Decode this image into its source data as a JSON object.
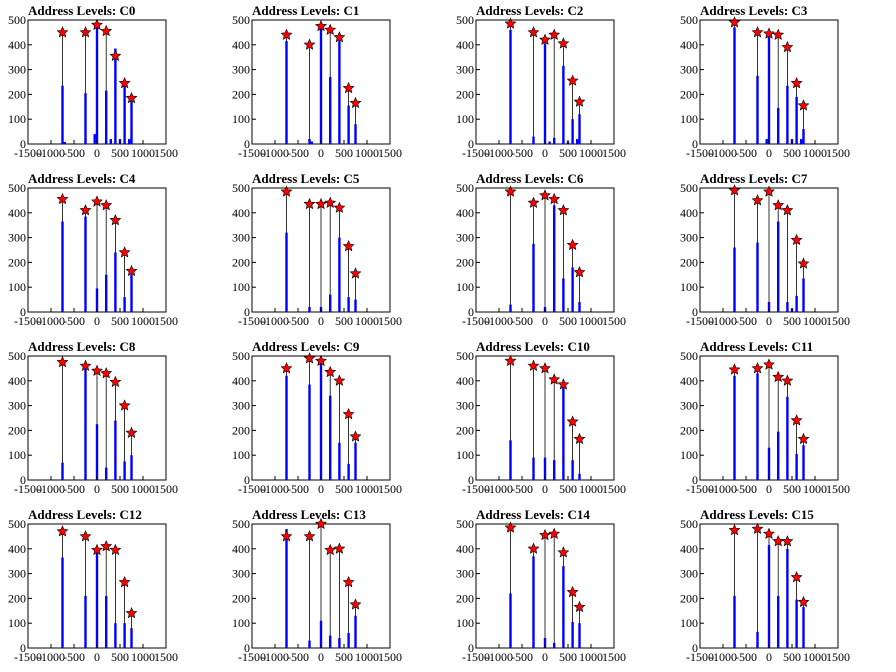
{
  "chart_data": [
    {
      "type": "bar",
      "title": "Address Levels: C0",
      "xlim": [
        -1500,
        1500
      ],
      "ylim": [
        0,
        500
      ],
      "xticks": [
        -1500,
        -1000,
        -500,
        0,
        500,
        1000,
        1500
      ],
      "yticks": [
        0,
        100,
        200,
        300,
        400,
        500
      ],
      "bars": [
        [
          -750,
          235
        ],
        [
          -700,
          8
        ],
        [
          -250,
          205
        ],
        [
          -50,
          40
        ],
        [
          0,
          485
        ],
        [
          200,
          215
        ],
        [
          300,
          20
        ],
        [
          400,
          385
        ],
        [
          500,
          20
        ],
        [
          600,
          245
        ],
        [
          700,
          20
        ],
        [
          750,
          180
        ]
      ],
      "peaks": [
        [
          -750,
          450
        ],
        [
          -250,
          450
        ],
        [
          0,
          480
        ],
        [
          200,
          455
        ],
        [
          400,
          355
        ],
        [
          600,
          245
        ],
        [
          750,
          185
        ]
      ]
    },
    {
      "type": "bar",
      "title": "Address Levels: C1",
      "xlim": [
        -1500,
        1500
      ],
      "ylim": [
        0,
        500
      ],
      "xticks": [
        -1500,
        -1000,
        -500,
        0,
        500,
        1000,
        1500
      ],
      "yticks": [
        0,
        100,
        200,
        300,
        400,
        500
      ],
      "bars": [
        [
          -750,
          415
        ],
        [
          -250,
          20
        ],
        [
          -200,
          10
        ],
        [
          0,
          465
        ],
        [
          200,
          270
        ],
        [
          400,
          415
        ],
        [
          600,
          155
        ],
        [
          750,
          80
        ]
      ],
      "peaks": [
        [
          -750,
          440
        ],
        [
          -250,
          400
        ],
        [
          0,
          475
        ],
        [
          200,
          460
        ],
        [
          400,
          430
        ],
        [
          600,
          225
        ],
        [
          750,
          165
        ]
      ]
    },
    {
      "type": "bar",
      "title": "Address Levels: C2",
      "xlim": [
        -1500,
        1500
      ],
      "ylim": [
        0,
        500
      ],
      "xticks": [
        -1500,
        -1000,
        -500,
        0,
        500,
        1000,
        1500
      ],
      "yticks": [
        0,
        100,
        200,
        300,
        400,
        500
      ],
      "bars": [
        [
          -750,
          460
        ],
        [
          -250,
          30
        ],
        [
          0,
          405
        ],
        [
          100,
          10
        ],
        [
          200,
          25
        ],
        [
          400,
          315
        ],
        [
          500,
          10
        ],
        [
          600,
          100
        ],
        [
          700,
          20
        ],
        [
          750,
          120
        ]
      ],
      "peaks": [
        [
          -750,
          485
        ],
        [
          -250,
          450
        ],
        [
          0,
          420
        ],
        [
          200,
          440
        ],
        [
          400,
          405
        ],
        [
          600,
          255
        ],
        [
          750,
          170
        ]
      ]
    },
    {
      "type": "bar",
      "title": "Address Levels: C3",
      "xlim": [
        -1500,
        1500
      ],
      "ylim": [
        0,
        500
      ],
      "xticks": [
        -1500,
        -1000,
        -500,
        0,
        500,
        1000,
        1500
      ],
      "yticks": [
        0,
        100,
        200,
        300,
        400,
        500
      ],
      "bars": [
        [
          -750,
          470
        ],
        [
          -250,
          275
        ],
        [
          -50,
          20
        ],
        [
          0,
          440
        ],
        [
          200,
          145
        ],
        [
          400,
          235
        ],
        [
          500,
          20
        ],
        [
          600,
          190
        ],
        [
          700,
          20
        ],
        [
          750,
          60
        ]
      ],
      "peaks": [
        [
          -750,
          490
        ],
        [
          -250,
          450
        ],
        [
          0,
          445
        ],
        [
          200,
          440
        ],
        [
          400,
          390
        ],
        [
          600,
          245
        ],
        [
          750,
          155
        ]
      ]
    },
    {
      "type": "bar",
      "title": "Address Levels: C4",
      "xlim": [
        -1500,
        1500
      ],
      "ylim": [
        0,
        500
      ],
      "xticks": [
        -1500,
        -1000,
        -500,
        0,
        500,
        1000,
        1500
      ],
      "yticks": [
        0,
        100,
        200,
        300,
        400,
        500
      ],
      "bars": [
        [
          -750,
          365
        ],
        [
          -250,
          385
        ],
        [
          0,
          95
        ],
        [
          200,
          150
        ],
        [
          400,
          240
        ],
        [
          600,
          60
        ],
        [
          750,
          150
        ]
      ],
      "peaks": [
        [
          -750,
          455
        ],
        [
          -250,
          410
        ],
        [
          0,
          445
        ],
        [
          200,
          430
        ],
        [
          400,
          370
        ],
        [
          600,
          240
        ],
        [
          750,
          165
        ]
      ]
    },
    {
      "type": "bar",
      "title": "Address Levels: C5",
      "xlim": [
        -1500,
        1500
      ],
      "ylim": [
        0,
        500
      ],
      "xticks": [
        -1500,
        -1000,
        -500,
        0,
        500,
        1000,
        1500
      ],
      "yticks": [
        0,
        100,
        200,
        300,
        400,
        500
      ],
      "bars": [
        [
          -750,
          320
        ],
        [
          -250,
          20
        ],
        [
          0,
          20
        ],
        [
          200,
          70
        ],
        [
          400,
          300
        ],
        [
          600,
          60
        ],
        [
          750,
          50
        ]
      ],
      "peaks": [
        [
          -750,
          485
        ],
        [
          -250,
          435
        ],
        [
          0,
          435
        ],
        [
          200,
          440
        ],
        [
          400,
          420
        ],
        [
          600,
          265
        ],
        [
          750,
          155
        ]
      ]
    },
    {
      "type": "bar",
      "title": "Address Levels: C6",
      "xlim": [
        -1500,
        1500
      ],
      "ylim": [
        0,
        500
      ],
      "xticks": [
        -1500,
        -1000,
        -500,
        0,
        500,
        1000,
        1500
      ],
      "yticks": [
        0,
        100,
        200,
        300,
        400,
        500
      ],
      "bars": [
        [
          -750,
          30
        ],
        [
          -250,
          275
        ],
        [
          0,
          20
        ],
        [
          200,
          430
        ],
        [
          400,
          135
        ],
        [
          600,
          180
        ],
        [
          750,
          40
        ]
      ],
      "peaks": [
        [
          -750,
          485
        ],
        [
          -250,
          440
        ],
        [
          0,
          470
        ],
        [
          200,
          455
        ],
        [
          400,
          410
        ],
        [
          600,
          270
        ],
        [
          750,
          160
        ]
      ]
    },
    {
      "type": "bar",
      "title": "Address Levels: C7",
      "xlim": [
        -1500,
        1500
      ],
      "ylim": [
        0,
        500
      ],
      "xticks": [
        -1500,
        -1000,
        -500,
        0,
        500,
        1000,
        1500
      ],
      "yticks": [
        0,
        100,
        200,
        300,
        400,
        500
      ],
      "bars": [
        [
          -750,
          260
        ],
        [
          -250,
          280
        ],
        [
          0,
          40
        ],
        [
          200,
          365
        ],
        [
          400,
          40
        ],
        [
          500,
          15
        ],
        [
          600,
          65
        ],
        [
          750,
          135
        ]
      ],
      "peaks": [
        [
          -750,
          490
        ],
        [
          -250,
          450
        ],
        [
          0,
          485
        ],
        [
          200,
          430
        ],
        [
          400,
          410
        ],
        [
          600,
          290
        ],
        [
          750,
          195
        ]
      ]
    },
    {
      "type": "bar",
      "title": "Address Levels: C8",
      "xlim": [
        -1500,
        1500
      ],
      "ylim": [
        0,
        500
      ],
      "xticks": [
        -1500,
        -1000,
        -500,
        0,
        500,
        1000,
        1500
      ],
      "yticks": [
        0,
        100,
        200,
        300,
        400,
        500
      ],
      "bars": [
        [
          -750,
          70
        ],
        [
          -250,
          455
        ],
        [
          0,
          225
        ],
        [
          200,
          50
        ],
        [
          400,
          240
        ],
        [
          600,
          75
        ],
        [
          750,
          100
        ]
      ],
      "peaks": [
        [
          -750,
          475
        ],
        [
          -250,
          460
        ],
        [
          0,
          440
        ],
        [
          200,
          430
        ],
        [
          400,
          395
        ],
        [
          600,
          300
        ],
        [
          750,
          190
        ]
      ]
    },
    {
      "type": "bar",
      "title": "Address Levels: C9",
      "xlim": [
        -1500,
        1500
      ],
      "ylim": [
        0,
        500
      ],
      "xticks": [
        -1500,
        -1000,
        -500,
        0,
        500,
        1000,
        1500
      ],
      "yticks": [
        0,
        100,
        200,
        300,
        400,
        500
      ],
      "bars": [
        [
          -750,
          420
        ],
        [
          -250,
          385
        ],
        [
          0,
          485
        ],
        [
          200,
          340
        ],
        [
          400,
          150
        ],
        [
          600,
          65
        ],
        [
          750,
          150
        ]
      ],
      "peaks": [
        [
          -750,
          450
        ],
        [
          -250,
          490
        ],
        [
          0,
          480
        ],
        [
          200,
          435
        ],
        [
          400,
          400
        ],
        [
          600,
          265
        ],
        [
          750,
          175
        ]
      ]
    },
    {
      "type": "bar",
      "title": "Address Levels: C10",
      "xlim": [
        -1500,
        1500
      ],
      "ylim": [
        0,
        500
      ],
      "xticks": [
        -1500,
        -1000,
        -500,
        0,
        500,
        1000,
        1500
      ],
      "yticks": [
        0,
        100,
        200,
        300,
        400,
        500
      ],
      "bars": [
        [
          -750,
          160
        ],
        [
          -250,
          90
        ],
        [
          0,
          90
        ],
        [
          200,
          80
        ],
        [
          400,
          385
        ],
        [
          600,
          80
        ],
        [
          750,
          25
        ]
      ],
      "peaks": [
        [
          -750,
          480
        ],
        [
          -250,
          460
        ],
        [
          0,
          450
        ],
        [
          200,
          405
        ],
        [
          400,
          385
        ],
        [
          600,
          235
        ],
        [
          750,
          165
        ]
      ]
    },
    {
      "type": "bar",
      "title": "Address Levels: C11",
      "xlim": [
        -1500,
        1500
      ],
      "ylim": [
        0,
        500
      ],
      "xticks": [
        -1500,
        -1000,
        -500,
        0,
        500,
        1000,
        1500
      ],
      "yticks": [
        0,
        100,
        200,
        300,
        400,
        500
      ],
      "bars": [
        [
          -750,
          420
        ],
        [
          -250,
          430
        ],
        [
          0,
          130
        ],
        [
          200,
          195
        ],
        [
          400,
          335
        ],
        [
          600,
          105
        ],
        [
          750,
          140
        ]
      ],
      "peaks": [
        [
          -750,
          445
        ],
        [
          -250,
          450
        ],
        [
          0,
          465
        ],
        [
          200,
          415
        ],
        [
          400,
          400
        ],
        [
          600,
          240
        ],
        [
          750,
          165
        ]
      ]
    },
    {
      "type": "bar",
      "title": "Address Levels: C12",
      "xlim": [
        -1500,
        1500
      ],
      "ylim": [
        0,
        500
      ],
      "xticks": [
        -1500,
        -1000,
        -500,
        0,
        500,
        1000,
        1500
      ],
      "yticks": [
        0,
        100,
        200,
        300,
        400,
        500
      ],
      "bars": [
        [
          -750,
          365
        ],
        [
          -250,
          210
        ],
        [
          0,
          395
        ],
        [
          200,
          210
        ],
        [
          400,
          100
        ],
        [
          600,
          100
        ],
        [
          750,
          80
        ]
      ],
      "peaks": [
        [
          -750,
          470
        ],
        [
          -250,
          450
        ],
        [
          0,
          395
        ],
        [
          200,
          410
        ],
        [
          400,
          395
        ],
        [
          600,
          265
        ],
        [
          750,
          140
        ]
      ]
    },
    {
      "type": "bar",
      "title": "Address Levels: C13",
      "xlim": [
        -1500,
        1500
      ],
      "ylim": [
        0,
        500
      ],
      "xticks": [
        -1500,
        -1000,
        -500,
        0,
        500,
        1000,
        1500
      ],
      "yticks": [
        0,
        100,
        200,
        300,
        400,
        500
      ],
      "bars": [
        [
          -750,
          480
        ],
        [
          -250,
          30
        ],
        [
          0,
          110
        ],
        [
          200,
          50
        ],
        [
          400,
          40
        ],
        [
          600,
          60
        ],
        [
          750,
          130
        ]
      ],
      "peaks": [
        [
          -750,
          450
        ],
        [
          -250,
          450
        ],
        [
          0,
          500
        ],
        [
          200,
          395
        ],
        [
          400,
          400
        ],
        [
          600,
          265
        ],
        [
          750,
          175
        ]
      ]
    },
    {
      "type": "bar",
      "title": "Address Levels: C14",
      "xlim": [
        -1500,
        1500
      ],
      "ylim": [
        0,
        500
      ],
      "xticks": [
        -1500,
        -1000,
        -500,
        0,
        500,
        1000,
        1500
      ],
      "yticks": [
        0,
        100,
        200,
        300,
        400,
        500
      ],
      "bars": [
        [
          -750,
          220
        ],
        [
          -250,
          370
        ],
        [
          0,
          40
        ],
        [
          200,
          20
        ],
        [
          400,
          330
        ],
        [
          600,
          105
        ],
        [
          750,
          100
        ]
      ],
      "peaks": [
        [
          -750,
          485
        ],
        [
          -250,
          400
        ],
        [
          0,
          455
        ],
        [
          200,
          460
        ],
        [
          400,
          385
        ],
        [
          600,
          225
        ],
        [
          750,
          165
        ]
      ]
    },
    {
      "type": "bar",
      "title": "Address Levels: C15",
      "xlim": [
        -1500,
        1500
      ],
      "ylim": [
        0,
        500
      ],
      "xticks": [
        -1500,
        -1000,
        -500,
        0,
        500,
        1000,
        1500
      ],
      "yticks": [
        0,
        100,
        200,
        300,
        400,
        500
      ],
      "bars": [
        [
          -750,
          210
        ],
        [
          -250,
          65
        ],
        [
          0,
          415
        ],
        [
          200,
          210
        ],
        [
          400,
          400
        ],
        [
          600,
          195
        ],
        [
          750,
          165
        ]
      ],
      "peaks": [
        [
          -750,
          475
        ],
        [
          -250,
          480
        ],
        [
          0,
          460
        ],
        [
          200,
          430
        ],
        [
          400,
          430
        ],
        [
          600,
          285
        ],
        [
          750,
          185
        ]
      ]
    }
  ]
}
